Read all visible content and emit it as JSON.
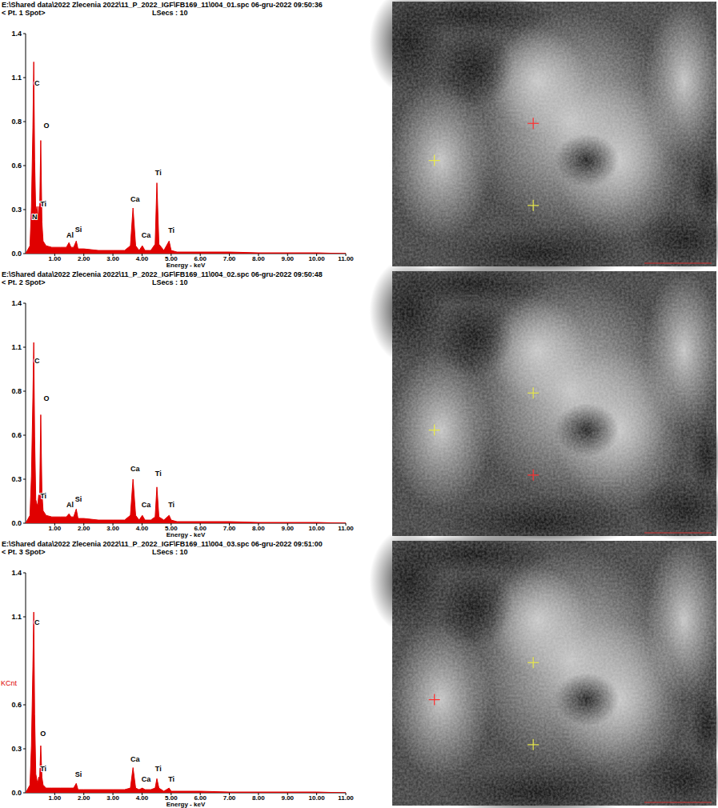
{
  "chart_data": [
    {
      "type": "area",
      "title": "E:\\Shared data\\2022 Zlecenia 2022\\11_P_2022_IGF\\FB169_11\\004_01.spc  06-gru-2022 09:50:36",
      "subtitle": "< Pt. 1 Spot>",
      "live_time": "LSecs : 10",
      "x_label": "Energy - keV",
      "color": "#e00000",
      "x": [
        0.0,
        0.15,
        0.2,
        0.25,
        0.28,
        0.31,
        0.35,
        0.39,
        0.42,
        0.45,
        0.48,
        0.52,
        0.56,
        0.6,
        0.7,
        0.9,
        1.2,
        1.4,
        1.49,
        1.56,
        1.65,
        1.74,
        1.8,
        2.0,
        2.5,
        3.0,
        3.4,
        3.6,
        3.69,
        3.78,
        3.9,
        4.01,
        4.1,
        4.3,
        4.45,
        4.51,
        4.58,
        4.75,
        4.93,
        5.0,
        5.2,
        6,
        7,
        8,
        9,
        10,
        11
      ],
      "values": [
        0,
        0.05,
        0.3,
        0.8,
        1.22,
        0.6,
        0.25,
        0.3,
        0.2,
        0.3,
        0.25,
        0.72,
        0.2,
        0.08,
        0.05,
        0.04,
        0.04,
        0.04,
        0.07,
        0.04,
        0.04,
        0.08,
        0.03,
        0.03,
        0.02,
        0.02,
        0.02,
        0.05,
        0.29,
        0.05,
        0.02,
        0.05,
        0.02,
        0.02,
        0.06,
        0.45,
        0.06,
        0.02,
        0.08,
        0.02,
        0.01,
        0.01,
        0.01,
        0.005,
        0.005,
        0.005,
        0
      ],
      "xlim": [
        0,
        11
      ],
      "ylim": [
        0,
        1.4
      ],
      "xticks": [
        {
          "value": 1,
          "label": "1.00"
        },
        {
          "value": 2,
          "label": "2.00"
        },
        {
          "value": 3,
          "label": "3.00"
        },
        {
          "value": 4,
          "label": "4.00"
        },
        {
          "value": 5,
          "label": "5.00"
        },
        {
          "value": 6,
          "label": "6.00"
        },
        {
          "value": 7,
          "label": "7.00"
        },
        {
          "value": 8,
          "label": "8.00"
        },
        {
          "value": 9,
          "label": "9.00"
        },
        {
          "value": 10,
          "label": "10.00"
        },
        {
          "value": 11,
          "label": "11.00"
        }
      ],
      "yticks": [
        {
          "value": 0,
          "label": "0.0"
        },
        {
          "value": 0.28,
          "label": "0.3"
        },
        {
          "value": 0.56,
          "label": "0.6"
        },
        {
          "value": 0.84,
          "label": "0.8"
        },
        {
          "value": 1.12,
          "label": "1.1"
        },
        {
          "value": 1.4,
          "label": "1.4"
        }
      ],
      "annotations": [
        {
          "text": "C",
          "x": 0.3,
          "y": 1.07
        },
        {
          "text": "O",
          "x": 0.62,
          "y": 0.8
        },
        {
          "text": "N",
          "x": 0.22,
          "y": 0.22
        },
        {
          "text": "Ti",
          "x": 0.5,
          "y": 0.3
        },
        {
          "text": "Al",
          "x": 1.4,
          "y": 0.1
        },
        {
          "text": "Si",
          "x": 1.7,
          "y": 0.14
        },
        {
          "text": "Ca",
          "x": 3.6,
          "y": 0.33
        },
        {
          "text": "Ca",
          "x": 3.98,
          "y": 0.1
        },
        {
          "text": "Ti",
          "x": 4.45,
          "y": 0.5
        },
        {
          "text": "Ti",
          "x": 4.9,
          "y": 0.13
        }
      ]
    },
    {
      "type": "area",
      "title": "E:\\Shared data\\2022 Zlecenia 2022\\11_P_2022_IGF\\FB169_11\\004_02.spc  06-gru-2022 09:50:48",
      "subtitle": "< Pt. 2 Spot>",
      "live_time": "LSecs : 10",
      "x_label": "Energy - keV",
      "color": "#e00000",
      "x": [
        0.0,
        0.15,
        0.2,
        0.25,
        0.28,
        0.31,
        0.35,
        0.39,
        0.42,
        0.45,
        0.48,
        0.52,
        0.56,
        0.6,
        0.7,
        0.9,
        1.2,
        1.4,
        1.49,
        1.56,
        1.65,
        1.74,
        1.8,
        2.0,
        2.5,
        3.0,
        3.4,
        3.6,
        3.69,
        3.78,
        3.9,
        4.01,
        4.1,
        4.3,
        4.45,
        4.51,
        4.58,
        4.75,
        4.93,
        5.0,
        5.2,
        6,
        7,
        8,
        9,
        10,
        11
      ],
      "values": [
        0,
        0.05,
        0.3,
        0.8,
        1.15,
        0.55,
        0.15,
        0.12,
        0.12,
        0.18,
        0.15,
        0.69,
        0.2,
        0.08,
        0.05,
        0.04,
        0.04,
        0.04,
        0.06,
        0.04,
        0.04,
        0.09,
        0.03,
        0.03,
        0.02,
        0.02,
        0.02,
        0.05,
        0.28,
        0.05,
        0.02,
        0.05,
        0.02,
        0.02,
        0.04,
        0.23,
        0.04,
        0.02,
        0.05,
        0.02,
        0.01,
        0.01,
        0.01,
        0.005,
        0.005,
        0.005,
        0
      ],
      "xlim": [
        0,
        11
      ],
      "ylim": [
        0,
        1.4
      ],
      "xticks": [
        {
          "value": 1,
          "label": "1.00"
        },
        {
          "value": 2,
          "label": "2.00"
        },
        {
          "value": 3,
          "label": "3.00"
        },
        {
          "value": 4,
          "label": "4.00"
        },
        {
          "value": 5,
          "label": "5.00"
        },
        {
          "value": 6,
          "label": "6.00"
        },
        {
          "value": 7,
          "label": "7.00"
        },
        {
          "value": 8,
          "label": "8.00"
        },
        {
          "value": 9,
          "label": "9.00"
        },
        {
          "value": 10,
          "label": "10.00"
        },
        {
          "value": 11,
          "label": "11.00"
        }
      ],
      "yticks": [
        {
          "value": 0,
          "label": "0.0"
        },
        {
          "value": 0.28,
          "label": "0.3"
        },
        {
          "value": 0.56,
          "label": "0.6"
        },
        {
          "value": 0.84,
          "label": "0.8"
        },
        {
          "value": 1.12,
          "label": "1.1"
        },
        {
          "value": 1.4,
          "label": "1.4"
        }
      ],
      "annotations": [
        {
          "text": "C",
          "x": 0.3,
          "y": 1.02
        },
        {
          "text": "O",
          "x": 0.62,
          "y": 0.78
        },
        {
          "text": "Ti",
          "x": 0.5,
          "y": 0.16
        },
        {
          "text": "Al",
          "x": 1.4,
          "y": 0.1
        },
        {
          "text": "Si",
          "x": 1.7,
          "y": 0.14
        },
        {
          "text": "Ca",
          "x": 3.6,
          "y": 0.33
        },
        {
          "text": "Ca",
          "x": 3.98,
          "y": 0.1
        },
        {
          "text": "Ti",
          "x": 4.45,
          "y": 0.3
        },
        {
          "text": "Ti",
          "x": 4.9,
          "y": 0.1
        }
      ]
    },
    {
      "type": "area",
      "title": "E:\\Shared data\\2022 Zlecenia 2022\\11_P_2022_IGF\\FB169_11\\004_03.spc  06-gru-2022 09:51:00",
      "subtitle": "< Pt. 3 Spot>",
      "live_time": "LSecs : 10",
      "x_label": "Energy - keV",
      "y_label": "KCnt",
      "color": "#e00000",
      "x": [
        0.0,
        0.15,
        0.2,
        0.25,
        0.28,
        0.31,
        0.35,
        0.39,
        0.42,
        0.45,
        0.48,
        0.52,
        0.56,
        0.6,
        0.7,
        0.9,
        1.2,
        1.4,
        1.49,
        1.56,
        1.65,
        1.74,
        1.8,
        2.0,
        2.5,
        3.0,
        3.4,
        3.6,
        3.69,
        3.78,
        3.9,
        4.01,
        4.1,
        4.3,
        4.45,
        4.51,
        4.58,
        4.75,
        4.93,
        5.0,
        5.2,
        6,
        7,
        8,
        9,
        10,
        11
      ],
      "values": [
        0,
        0.05,
        0.3,
        0.8,
        1.15,
        0.5,
        0.12,
        0.08,
        0.06,
        0.1,
        0.08,
        0.3,
        0.1,
        0.05,
        0.03,
        0.03,
        0.03,
        0.03,
        0.03,
        0.03,
        0.03,
        0.06,
        0.02,
        0.02,
        0.02,
        0.02,
        0.02,
        0.03,
        0.16,
        0.03,
        0.02,
        0.03,
        0.02,
        0.02,
        0.03,
        0.09,
        0.03,
        0.01,
        0.03,
        0.01,
        0.01,
        0.01,
        0.005,
        0.005,
        0.005,
        0.005,
        0
      ],
      "xlim": [
        0,
        11
      ],
      "ylim": [
        0,
        1.4
      ],
      "xticks": [
        {
          "value": 1,
          "label": "1.00"
        },
        {
          "value": 2,
          "label": "2.00"
        },
        {
          "value": 3,
          "label": "3.00"
        },
        {
          "value": 4,
          "label": "4.00"
        },
        {
          "value": 5,
          "label": "5.00"
        },
        {
          "value": 6,
          "label": "6.00"
        },
        {
          "value": 7,
          "label": "7.00"
        },
        {
          "value": 8,
          "label": "8.00"
        },
        {
          "value": 9,
          "label": "9.00"
        },
        {
          "value": 10,
          "label": "10.00"
        },
        {
          "value": 11,
          "label": "11.00"
        }
      ],
      "yticks": [
        {
          "value": 0,
          "label": "0.0"
        },
        {
          "value": 0.28,
          "label": "0.3"
        },
        {
          "value": 0.56,
          "label": "0.6"
        },
        {
          "value": 1.12,
          "label": "1.1"
        },
        {
          "value": 1.4,
          "label": "1.4"
        }
      ],
      "annotations": [
        {
          "text": "C",
          "x": 0.3,
          "y": 1.07
        },
        {
          "text": "O",
          "x": 0.5,
          "y": 0.36
        },
        {
          "text": "Ti",
          "x": 0.5,
          "y": 0.14
        },
        {
          "text": "Si",
          "x": 1.7,
          "y": 0.1
        },
        {
          "text": "Ca",
          "x": 3.6,
          "y": 0.2
        },
        {
          "text": "Ca",
          "x": 3.98,
          "y": 0.07
        },
        {
          "text": "Ti",
          "x": 4.45,
          "y": 0.14
        },
        {
          "text": "Ti",
          "x": 4.9,
          "y": 0.07
        }
      ]
    }
  ]
}
